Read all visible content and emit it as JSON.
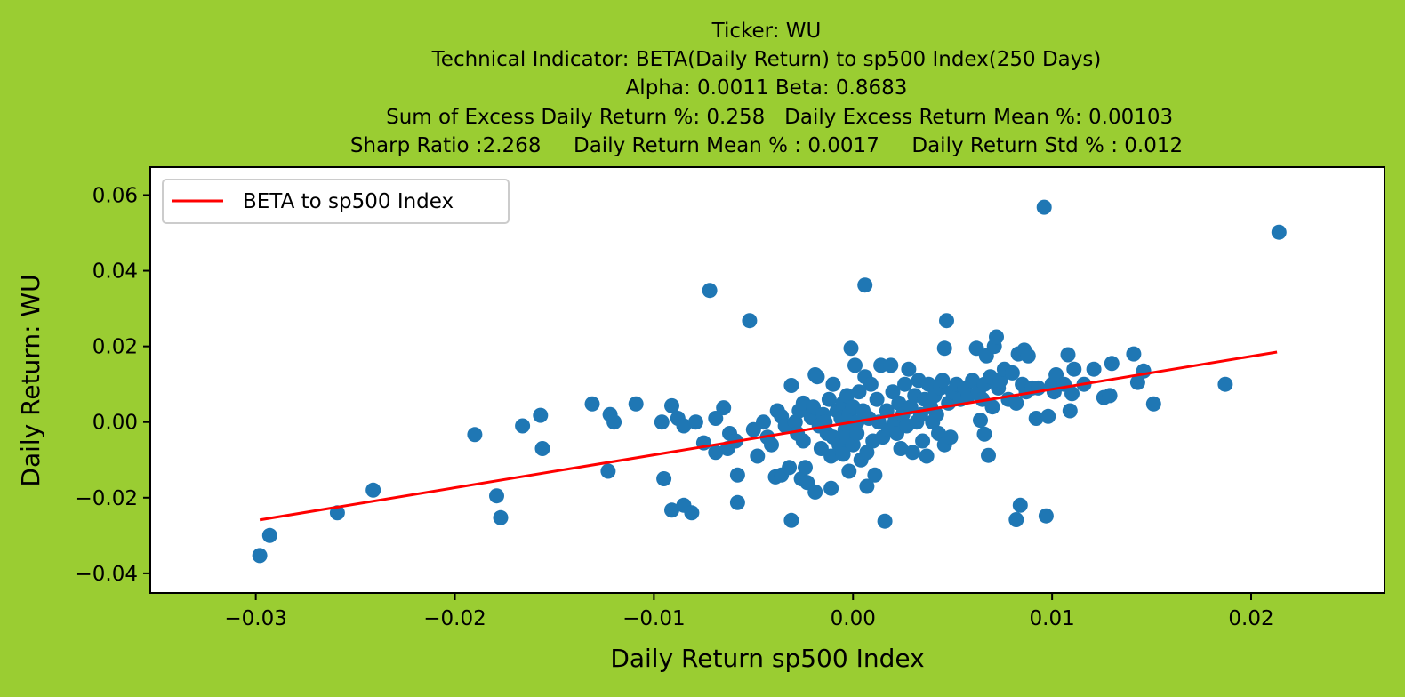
{
  "chart_data": {
    "type": "scatter",
    "title_lines": [
      "Ticker: WU",
      "Technical Indicator: BETA(Daily Return) to sp500 Index(250 Days)",
      "Alpha: 0.0011   Beta: 0.8683",
      "    Sum of Excess Daily Return %: 0.258   Daily Excess Return Mean %: 0.00103",
      "Sharp Ratio :2.268     Daily Return Mean % : 0.0017     Daily Return Std % : 0.012"
    ],
    "xlabel": "Daily Return sp500 Index",
    "ylabel": "Daily Return: WU",
    "xlim": [
      -0.0353,
      0.0267
    ],
    "ylim": [
      -0.0452,
      0.0674
    ],
    "x_ticks": [
      -0.03,
      -0.02,
      -0.01,
      0.0,
      0.01,
      0.02
    ],
    "x_tick_labels": [
      "−0.03",
      "−0.02",
      "−0.01",
      "0.00",
      "0.01",
      "0.02"
    ],
    "y_ticks": [
      -0.04,
      -0.02,
      0.0,
      0.02,
      0.04,
      0.06
    ],
    "y_tick_labels": [
      "−0.04",
      "−0.02",
      "0.00",
      "0.02",
      "0.04",
      "0.06"
    ],
    "grid": false,
    "legend": {
      "position": "top-left",
      "entries": [
        "BETA to sp500 Index"
      ]
    },
    "colors": {
      "background": "#9acd32",
      "points": "#1f77b4",
      "line": "#ff0000",
      "axes_bg": "#ffffff"
    },
    "regression": {
      "alpha": 0.0011,
      "beta": 0.8683,
      "x_range": [
        -0.0298,
        0.0213
      ]
    },
    "points": [
      [
        -0.0298,
        -0.0353
      ],
      [
        -0.0293,
        -0.03
      ],
      [
        -0.0259,
        -0.024
      ],
      [
        -0.0241,
        -0.018
      ],
      [
        -0.019,
        -0.0033
      ],
      [
        -0.0179,
        -0.0195
      ],
      [
        -0.0177,
        -0.0253
      ],
      [
        -0.0166,
        -0.001
      ],
      [
        -0.0157,
        0.0018
      ],
      [
        -0.0156,
        -0.007
      ],
      [
        -0.0131,
        0.0048
      ],
      [
        -0.0123,
        -0.013
      ],
      [
        -0.0122,
        0.002
      ],
      [
        -0.012,
        0.0
      ],
      [
        -0.0109,
        0.0048
      ],
      [
        -0.0095,
        -0.015
      ],
      [
        -0.0096,
        0.0
      ],
      [
        -0.0091,
        0.0043
      ],
      [
        -0.0091,
        -0.0233
      ],
      [
        -0.0088,
        0.001
      ],
      [
        -0.0085,
        -0.022
      ],
      [
        -0.0085,
        -0.001
      ],
      [
        -0.0081,
        -0.024
      ],
      [
        -0.0079,
        0.0
      ],
      [
        -0.0072,
        0.0348
      ],
      [
        -0.0075,
        -0.0055
      ],
      [
        -0.0069,
        0.001
      ],
      [
        -0.0069,
        -0.008
      ],
      [
        -0.0065,
        0.0038
      ],
      [
        -0.0063,
        -0.007
      ],
      [
        -0.0062,
        -0.003
      ],
      [
        -0.0059,
        -0.005
      ],
      [
        -0.0058,
        -0.0213
      ],
      [
        -0.0058,
        -0.014
      ],
      [
        -0.0052,
        0.0268
      ],
      [
        -0.005,
        -0.002
      ],
      [
        -0.0048,
        -0.009
      ],
      [
        -0.0045,
        0.0
      ],
      [
        -0.0043,
        -0.004
      ],
      [
        -0.0041,
        -0.006
      ],
      [
        -0.0039,
        -0.0145
      ],
      [
        -0.0038,
        0.003
      ],
      [
        -0.0036,
        0.0015
      ],
      [
        -0.0036,
        -0.014
      ],
      [
        -0.0034,
        -0.001
      ],
      [
        -0.0032,
        -0.012
      ],
      [
        -0.0031,
        0.0097
      ],
      [
        -0.0031,
        -0.026
      ],
      [
        -0.0029,
        0.0
      ],
      [
        -0.0028,
        -0.003
      ],
      [
        -0.0027,
        0.003
      ],
      [
        -0.0026,
        -0.015
      ],
      [
        -0.0025,
        -0.005
      ],
      [
        -0.0025,
        0.005
      ],
      [
        -0.0024,
        -0.012
      ],
      [
        -0.0023,
        -0.016
      ],
      [
        -0.0021,
        0.0012
      ],
      [
        -0.002,
        0.004
      ],
      [
        -0.0019,
        0.0125
      ],
      [
        -0.0019,
        -0.0185
      ],
      [
        -0.0018,
        0.012
      ],
      [
        -0.0017,
        -0.001
      ],
      [
        -0.0016,
        -0.007
      ],
      [
        -0.0015,
        0.002
      ],
      [
        -0.0014,
        0.0
      ],
      [
        -0.0013,
        -0.003
      ],
      [
        -0.0012,
        0.006
      ],
      [
        -0.0011,
        -0.009
      ],
      [
        -0.0011,
        -0.0175
      ],
      [
        -0.001,
        0.01
      ],
      [
        -0.001,
        -0.004
      ],
      [
        -0.0008,
        0.003
      ],
      [
        -0.0007,
        -0.006
      ],
      [
        -0.0006,
        0.001
      ],
      [
        -0.0005,
        0.005
      ],
      [
        -0.0005,
        -0.0085
      ],
      [
        -0.0004,
        -0.002
      ],
      [
        -0.0003,
        0.007
      ],
      [
        -0.0003,
        -0.004
      ],
      [
        -0.0002,
        0.002
      ],
      [
        -0.0002,
        -0.013
      ],
      [
        -0.0001,
        0.0195
      ],
      [
        0.0,
        0.004
      ],
      [
        0.0,
        -0.006
      ],
      [
        0.0001,
        0.015
      ],
      [
        0.0002,
        0.0
      ],
      [
        0.0002,
        -0.003
      ],
      [
        0.0003,
        0.008
      ],
      [
        0.0004,
        -0.01
      ],
      [
        0.0005,
        0.003
      ],
      [
        0.0006,
        0.012
      ],
      [
        0.0006,
        0.0362
      ],
      [
        0.0007,
        -0.017
      ],
      [
        0.0007,
        -0.008
      ],
      [
        0.0008,
        0.001
      ],
      [
        0.0009,
        0.01
      ],
      [
        0.001,
        -0.005
      ],
      [
        0.0011,
        -0.014
      ],
      [
        0.0012,
        0.006
      ],
      [
        0.0013,
        0.0
      ],
      [
        0.0014,
        0.015
      ],
      [
        0.0015,
        -0.004
      ],
      [
        0.0016,
        -0.0262
      ],
      [
        0.0017,
        0.003
      ],
      [
        0.0018,
        -0.002
      ],
      [
        0.0019,
        0.015
      ],
      [
        0.002,
        0.008
      ],
      [
        0.0021,
        0.0
      ],
      [
        0.0022,
        -0.003
      ],
      [
        0.0023,
        0.005
      ],
      [
        0.0024,
        -0.007
      ],
      [
        0.0025,
        0.002
      ],
      [
        0.0026,
        0.01
      ],
      [
        0.0027,
        -0.001
      ],
      [
        0.0028,
        0.014
      ],
      [
        0.0029,
        0.004
      ],
      [
        0.003,
        -0.008
      ],
      [
        0.0031,
        0.007
      ],
      [
        0.0032,
        0.0
      ],
      [
        0.0033,
        0.011
      ],
      [
        0.0034,
        0.002
      ],
      [
        0.0035,
        -0.005
      ],
      [
        0.0036,
        0.006
      ],
      [
        0.0037,
        -0.009
      ],
      [
        0.0038,
        0.01
      ],
      [
        0.0039,
        0.004
      ],
      [
        0.004,
        0.0
      ],
      [
        0.0041,
        0.007
      ],
      [
        0.0042,
        0.002
      ],
      [
        0.0043,
        -0.003
      ],
      [
        0.0044,
        0.009
      ],
      [
        0.0045,
        0.011
      ],
      [
        0.0046,
        -0.006
      ],
      [
        0.0046,
        0.0195
      ],
      [
        0.0047,
        0.0268
      ],
      [
        0.0048,
        0.005
      ],
      [
        0.0049,
        -0.004
      ],
      [
        0.005,
        0.008
      ],
      [
        0.0052,
        0.01
      ],
      [
        0.0054,
        0.006
      ],
      [
        0.0056,
        0.009
      ],
      [
        0.0058,
        0.007
      ],
      [
        0.006,
        0.011
      ],
      [
        0.0062,
        0.0195
      ],
      [
        0.0063,
        0.008
      ],
      [
        0.0064,
        0.0005
      ],
      [
        0.0065,
        0.006
      ],
      [
        0.0066,
        0.01
      ],
      [
        0.0066,
        -0.0032
      ],
      [
        0.0067,
        0.0175
      ],
      [
        0.0068,
        -0.0088
      ],
      [
        0.0069,
        0.012
      ],
      [
        0.007,
        0.004
      ],
      [
        0.0071,
        0.02
      ],
      [
        0.0072,
        0.0225
      ],
      [
        0.0073,
        0.009
      ],
      [
        0.0074,
        0.011
      ],
      [
        0.0076,
        0.014
      ],
      [
        0.0078,
        0.006
      ],
      [
        0.008,
        0.013
      ],
      [
        0.0082,
        0.005
      ],
      [
        0.0082,
        -0.0258
      ],
      [
        0.0083,
        0.018
      ],
      [
        0.0084,
        -0.022
      ],
      [
        0.0085,
        0.01
      ],
      [
        0.0086,
        0.019
      ],
      [
        0.0087,
        0.008
      ],
      [
        0.0088,
        0.0175
      ],
      [
        0.009,
        0.009
      ],
      [
        0.0092,
        0.001
      ],
      [
        0.0093,
        0.009
      ],
      [
        0.0096,
        0.0568
      ],
      [
        0.0097,
        -0.0248
      ],
      [
        0.0098,
        0.0015
      ],
      [
        0.01,
        0.01
      ],
      [
        0.0101,
        0.008
      ],
      [
        0.0102,
        0.0125
      ],
      [
        0.0106,
        0.01
      ],
      [
        0.0108,
        0.0178
      ],
      [
        0.0109,
        0.003
      ],
      [
        0.011,
        0.0075
      ],
      [
        0.0111,
        0.014
      ],
      [
        0.0116,
        0.01
      ],
      [
        0.0121,
        0.014
      ],
      [
        0.0126,
        0.0065
      ],
      [
        0.0129,
        0.007
      ],
      [
        0.013,
        0.0155
      ],
      [
        0.0141,
        0.018
      ],
      [
        0.0143,
        0.0105
      ],
      [
        0.0146,
        0.0135
      ],
      [
        0.0151,
        0.0048
      ],
      [
        0.0187,
        0.01
      ],
      [
        0.0214,
        0.0502
      ]
    ]
  }
}
